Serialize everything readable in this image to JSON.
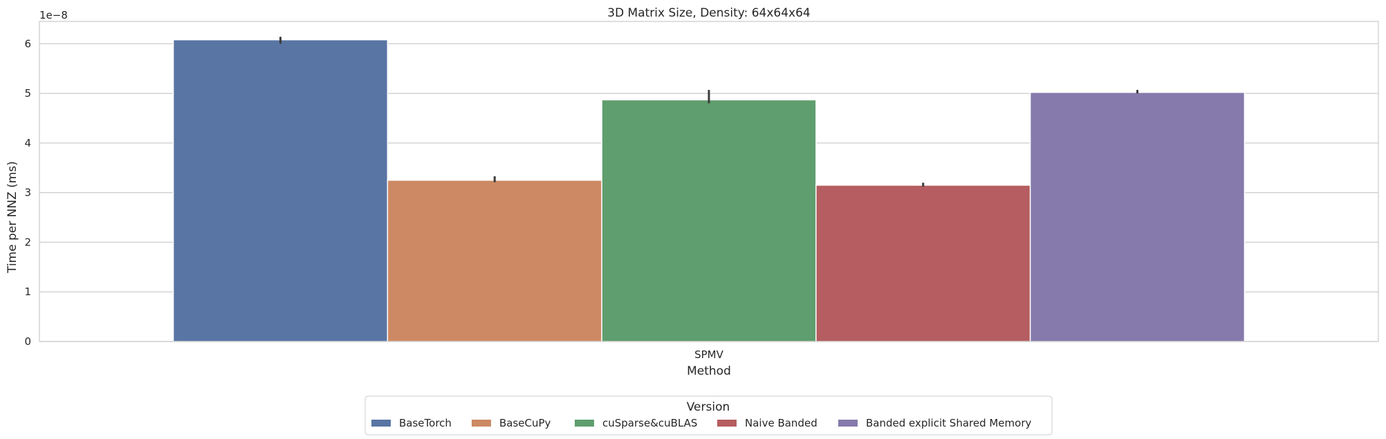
{
  "chart_data": {
    "type": "bar",
    "title": "3D Matrix Size, Density: 64x64x64",
    "xlabel": "Method",
    "ylabel": "Time per NNZ (ms)",
    "offset_label": "1e−8",
    "categories": [
      "SPMV"
    ],
    "ylim": [
      0,
      6.45
    ],
    "yticks": [
      0,
      1,
      2,
      3,
      4,
      5,
      6
    ],
    "ytick_labels": [
      "0",
      "1",
      "2",
      "3",
      "4",
      "5",
      "6"
    ],
    "grid": true,
    "legend": {
      "title": "Version",
      "placement": "bottom-center"
    },
    "series": [
      {
        "name": "BaseTorch",
        "values": [
          6.08
        ],
        "error": [
          6.0,
          6.14
        ],
        "color": "#5975a4"
      },
      {
        "name": "BaseCuPy",
        "values": [
          3.25
        ],
        "error": [
          3.21,
          3.33
        ],
        "color": "#cc8963"
      },
      {
        "name": "cuSparse&cuBLAS",
        "values": [
          4.87
        ],
        "error": [
          4.8,
          5.07
        ],
        "color": "#5f9e6e"
      },
      {
        "name": "Naive Banded",
        "values": [
          3.15
        ],
        "error": [
          3.12,
          3.2
        ],
        "color": "#b55d60"
      },
      {
        "name": "Banded explicit Shared Memory",
        "values": [
          5.02
        ],
        "error": [
          5.0,
          5.07
        ],
        "color": "#857aab"
      }
    ]
  }
}
